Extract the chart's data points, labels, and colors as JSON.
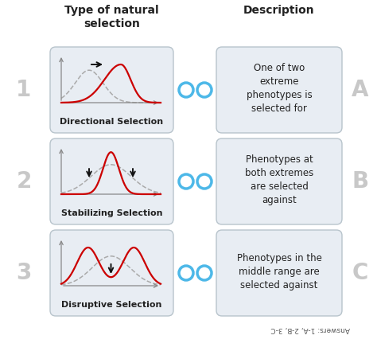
{
  "title_left": "Type of natural\nselection",
  "title_right": "Description",
  "row_numbers": [
    "1",
    "2",
    "3"
  ],
  "row_letters": [
    "A",
    "B",
    "C"
  ],
  "selection_types": [
    "Directional Selection",
    "Stabilizing Selection",
    "Disruptive Selection"
  ],
  "descriptions": [
    "One of two\nextreme\nphenotypes is\nselected for",
    "Phenotypes at\nboth extremes\nare selected\nagainst",
    "Phenotypes in the\nmiddle range are\nselected against"
  ],
  "bg_color": "#ffffff",
  "box_bg": "#e8edf3",
  "box_border": "#b8c4cc",
  "circle_color": "#4db8e8",
  "number_color": "#c8c8c8",
  "letter_color": "#c8c8c8",
  "red_curve": "#cc0000",
  "gray_dashed": "#aaaaaa",
  "arrow_color": "#111111",
  "axis_color": "#888888",
  "title_fontsize": 10,
  "label_fontsize": 8,
  "desc_fontsize": 8.5,
  "num_fontsize": 20,
  "answers_text": "Answers: 1-A, 2-B, 3-C"
}
